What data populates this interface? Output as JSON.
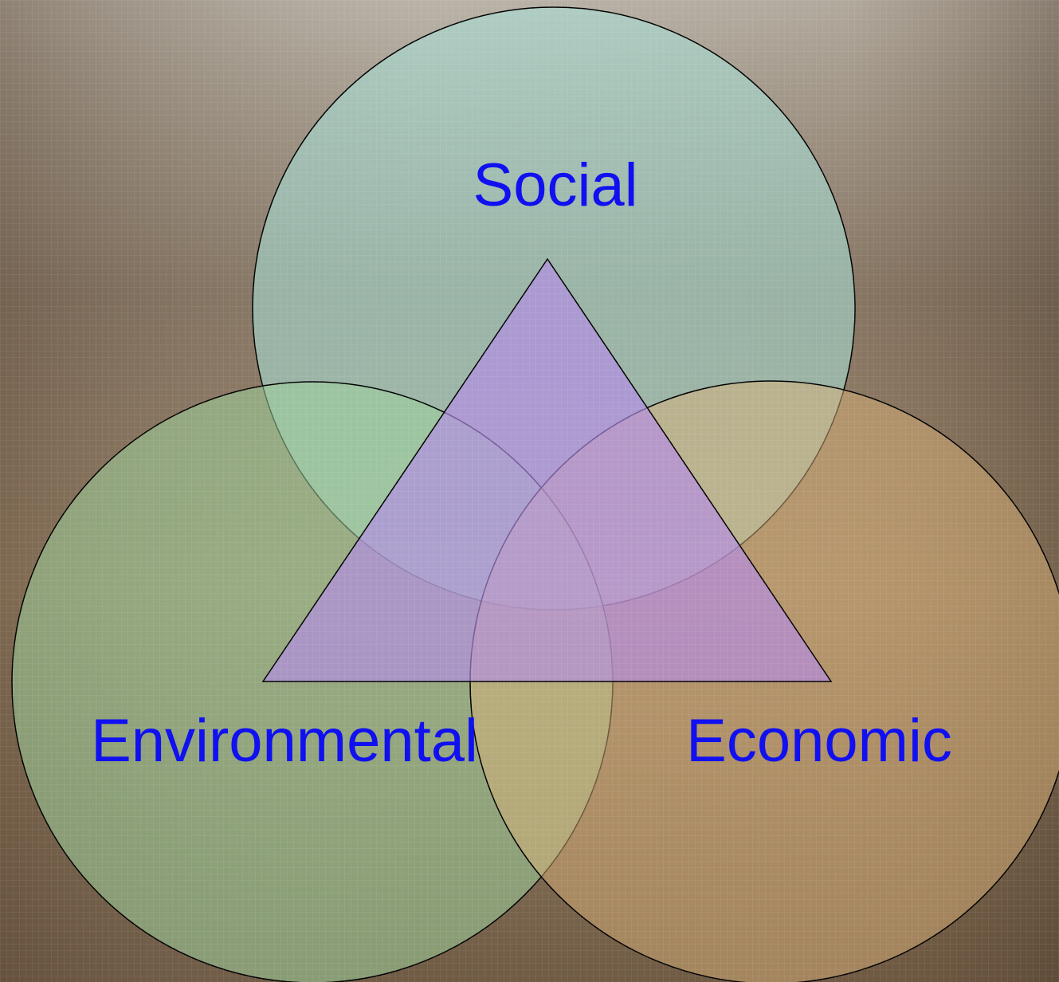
{
  "nodes": [
    {
      "label": "Social"
    },
    {
      "label": "Environmental"
    },
    {
      "label": "Economic"
    }
  ]
}
